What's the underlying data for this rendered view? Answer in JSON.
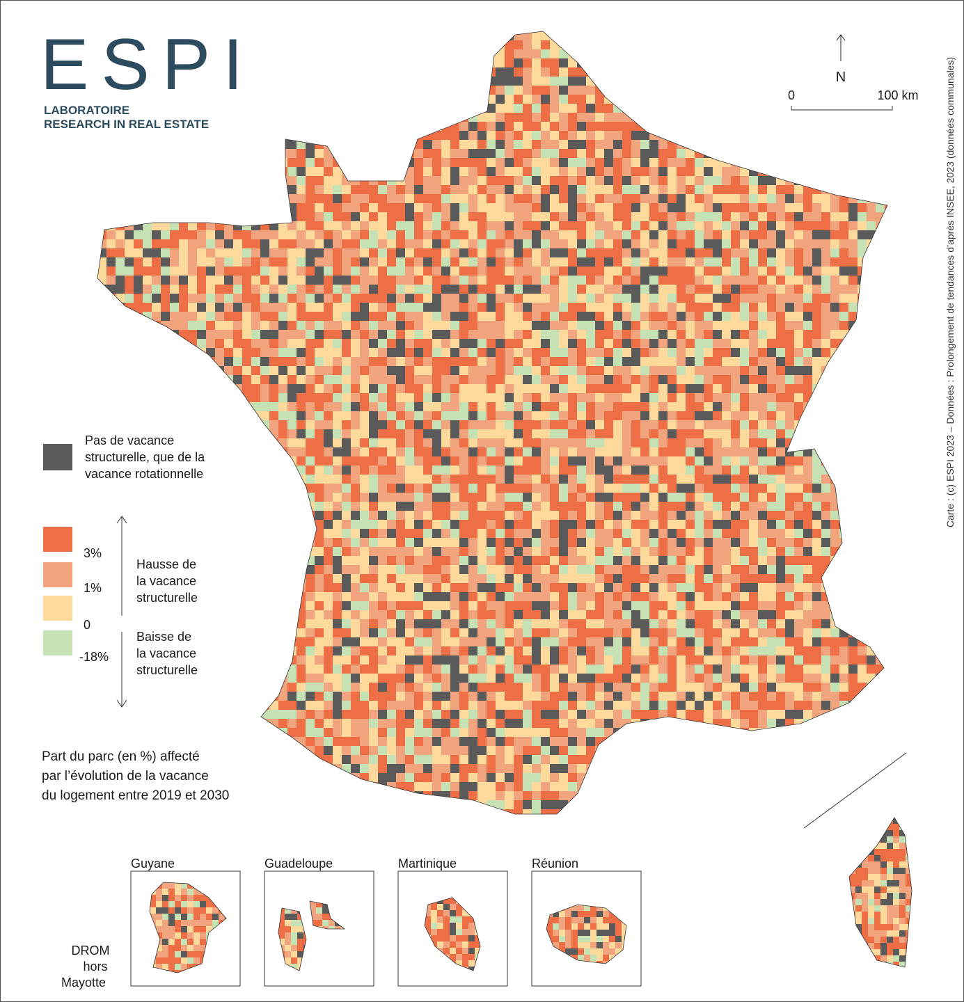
{
  "logo": {
    "title": "ESPI",
    "subtitle_1": "LABORATOIRE",
    "subtitle_2": "RESEARCH IN REAL ESTATE"
  },
  "north": "N",
  "scale": {
    "start": "0",
    "end": "100 km"
  },
  "credit": "Carte : (c) ESPI 2023 – Données : Prolongement de tendances d’après INSEE, 2023 (données communales)",
  "legend": {
    "no_vacancy": {
      "lines": [
        "Pas de vacance",
        "structurelle, que de la",
        "vacance rotationnelle"
      ],
      "color": "#5a5a5a"
    },
    "classes": [
      {
        "color": "#ee6f45"
      },
      {
        "color": "#f2a47f"
      },
      {
        "color": "#fdda9c"
      },
      {
        "color": "#c6e2b5"
      }
    ],
    "breaks": [
      "3%",
      "1%",
      "0",
      "-18%"
    ],
    "hausse": [
      "Hausse de",
      "la vacance",
      "structurelle"
    ],
    "baisse": [
      "Baisse de",
      "la vacance",
      "structurelle"
    ],
    "caption": [
      "Part du parc (en %) affecté",
      "par l’évolution de la vacance",
      "du logement entre 2019 et 2030"
    ]
  },
  "insets": [
    {
      "label": "Guyane"
    },
    {
      "label": "Guadeloupe"
    },
    {
      "label": "Martinique"
    },
    {
      "label": "Réunion"
    }
  ],
  "drom": [
    "DROM",
    "hors",
    "Mayotte"
  ]
}
